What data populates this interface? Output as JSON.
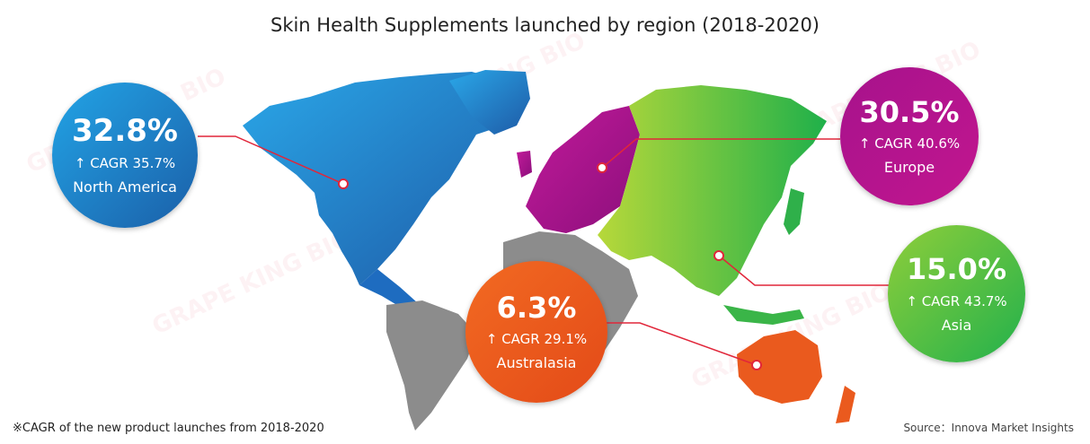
{
  "title": "Skin Health Supplements launched by region (2018-2020)",
  "watermark": "GRAPE KING BIO",
  "regions": {
    "north_america": {
      "pct": "32.8%",
      "cagr": "↑ CAGR 35.7%",
      "name": "North America",
      "color_a": "#1a86d8",
      "color_b": "#1b6aa8"
    },
    "europe": {
      "pct": "30.5%",
      "cagr": "↑ CAGR 40.6%",
      "name": "Europe",
      "color_a": "#a8128e",
      "color_b": "#7a0e6e"
    },
    "asia": {
      "pct": "15.0%",
      "cagr": "↑ CAGR 43.7%",
      "name": "Asia",
      "color_a": "#7ac943",
      "color_b": "#20b24a"
    },
    "australasia": {
      "pct": "6.3%",
      "cagr": "↑ CAGR 29.1%",
      "name": "Australasia",
      "color_a": "#f0641e",
      "color_b": "#e0461a"
    }
  },
  "footnote": "※CAGR of the new product launches from 2018-2020",
  "source": "Source：Innova Market Insights"
}
